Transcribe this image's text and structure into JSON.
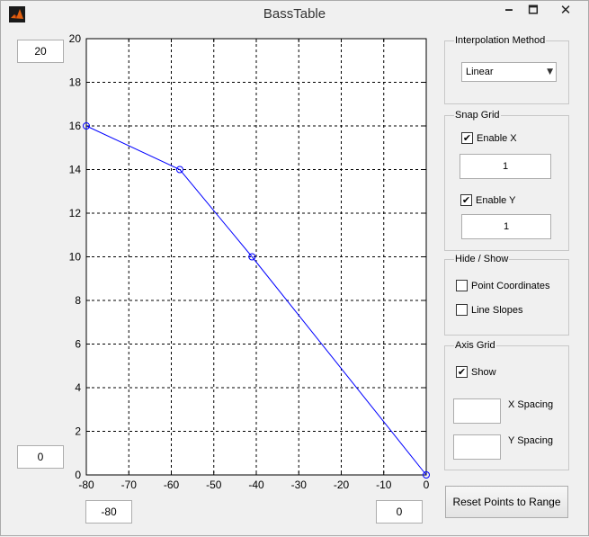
{
  "window": {
    "title": "BassTable",
    "minimize_glyph": "🗕",
    "maximize_glyph": "🗖",
    "close_glyph": "✕"
  },
  "axis_limits": {
    "ymax": "20",
    "ymin": "0",
    "xmin": "-80",
    "xmax": "0"
  },
  "chart_data": {
    "type": "line",
    "x": [
      -80,
      -58,
      -41,
      0
    ],
    "y": [
      16,
      14,
      10,
      0
    ],
    "xlim": [
      -80,
      0
    ],
    "ylim": [
      0,
      20
    ],
    "xticks": [
      -80,
      -70,
      -60,
      -50,
      -40,
      -30,
      -20,
      -10,
      0
    ],
    "yticks": [
      0,
      2,
      4,
      6,
      8,
      10,
      12,
      14,
      16,
      18,
      20
    ],
    "xtick_labels": [
      "-80",
      "-70",
      "-60",
      "-50",
      "-40",
      "-30",
      "-20",
      "-10",
      "0"
    ],
    "ytick_labels": [
      "0",
      "2",
      "4",
      "6",
      "8",
      "10",
      "12",
      "14",
      "16",
      "18",
      "20"
    ],
    "grid": true,
    "line_color": "#0000ff",
    "marker": "circle"
  },
  "interpolation": {
    "title": "Interpolation Method",
    "selected": "Linear",
    "arrow_icon": "chevron-down-icon"
  },
  "snap_grid": {
    "title": "Snap Grid",
    "enable_x_label": "Enable X",
    "enable_x_checked": true,
    "x_value": "1",
    "enable_y_label": "Enable Y",
    "enable_y_checked": true,
    "y_value": "1"
  },
  "hide_show": {
    "title": "Hide / Show",
    "point_coords_label": "Point Coordinates",
    "point_coords_checked": false,
    "line_slopes_label": "Line Slopes",
    "line_slopes_checked": false
  },
  "axis_grid": {
    "title": "Axis Grid",
    "show_label": "Show",
    "show_checked": true,
    "x_spacing_label": "X Spacing",
    "x_spacing_value": "",
    "y_spacing_label": "Y Spacing",
    "y_spacing_value": ""
  },
  "reset_button_label": "Reset Points to Range",
  "check_glyph": "✔"
}
